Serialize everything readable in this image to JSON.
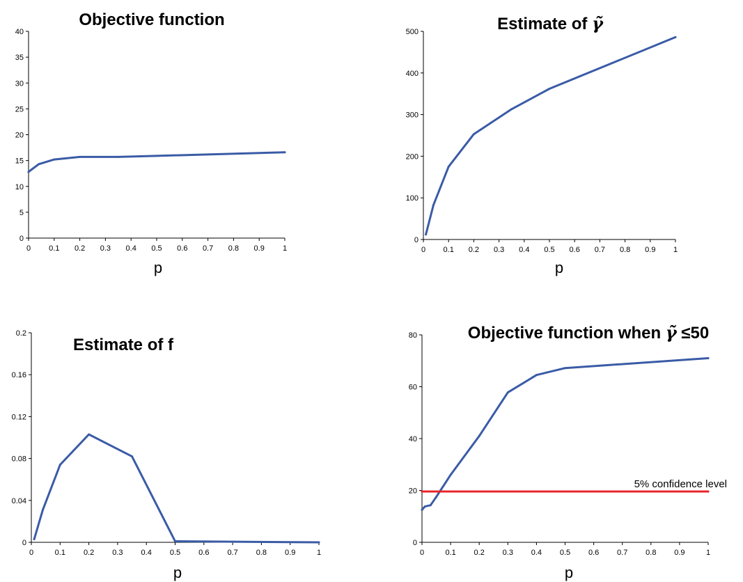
{
  "chart_data": [
    {
      "type": "line",
      "title": "Objective function",
      "xlabel": "p",
      "ylabel": "",
      "xlim": [
        0,
        1
      ],
      "ylim": [
        0,
        40
      ],
      "xticks": [
        "0",
        "0.1",
        "0.2",
        "0.3",
        "0.4",
        "0.5",
        "0.6",
        "0.7",
        "0.8",
        "0.9",
        "1"
      ],
      "yticks": [
        "0",
        "5",
        "10",
        "15",
        "20",
        "25",
        "30",
        "35",
        "40"
      ],
      "grid": false,
      "series": [
        {
          "color": "#3a5ba6",
          "x": [
            0.0,
            0.01,
            0.04,
            0.1,
            0.2,
            0.35,
            0.5,
            1.0
          ],
          "y": [
            12.8,
            13.2,
            14.3,
            15.2,
            15.7,
            15.7,
            15.9,
            16.6
          ]
        }
      ]
    },
    {
      "type": "line",
      "title": "Estimate of ",
      "title_symbol": "γ̃",
      "xlabel": "p",
      "ylabel": "",
      "xlim": [
        0,
        1
      ],
      "ylim": [
        0,
        500
      ],
      "xticks": [
        "0",
        "0.1",
        "0.2",
        "0.3",
        "0.4",
        "0.5",
        "0.6",
        "0.7",
        "0.8",
        "0.9",
        "1"
      ],
      "yticks": [
        "0",
        "100",
        "200",
        "300",
        "400",
        "500"
      ],
      "grid": false,
      "series": [
        {
          "color": "#3a5ba6",
          "x": [
            0.01,
            0.04,
            0.1,
            0.2,
            0.35,
            0.5,
            1.0
          ],
          "y": [
            12,
            83,
            175,
            253,
            313,
            362,
            486
          ]
        }
      ]
    },
    {
      "type": "line",
      "title": "Estimate of f",
      "xlabel": "p",
      "ylabel": "",
      "xlim": [
        0,
        1
      ],
      "ylim": [
        0,
        0.2
      ],
      "xticks": [
        "0",
        "0.1",
        "0.2",
        "0.3",
        "0.4",
        "0.5",
        "0.6",
        "0.7",
        "0.8",
        "0.9",
        "1"
      ],
      "yticks": [
        "0",
        "0.04",
        "0.08",
        "0.12",
        "0.16",
        "0.2"
      ],
      "grid": false,
      "series": [
        {
          "color": "#3a5ba6",
          "x": [
            0.01,
            0.04,
            0.1,
            0.2,
            0.35,
            0.5,
            1.0
          ],
          "y": [
            0.003,
            0.031,
            0.074,
            0.103,
            0.082,
            0.001,
            0.0
          ]
        }
      ]
    },
    {
      "type": "line",
      "title": "Objective function when ",
      "title_symbol": "γ̃",
      "title_suffix": " ≤50",
      "xlabel": "p",
      "ylabel": "",
      "xlim": [
        0,
        1
      ],
      "ylim": [
        0,
        80
      ],
      "xticks": [
        "0",
        "0.1",
        "0.2",
        "0.3",
        "0.4",
        "0.5",
        "0.6",
        "0.7",
        "0.8",
        "0.9",
        "1"
      ],
      "yticks": [
        "0",
        "20",
        "40",
        "60",
        "80"
      ],
      "grid": false,
      "series": [
        {
          "color": "#3a5ba6",
          "x": [
            0.0,
            0.01,
            0.03,
            0.05,
            0.1,
            0.2,
            0.3,
            0.4,
            0.5,
            1.0
          ],
          "y": [
            12.5,
            13.8,
            14.3,
            17.5,
            26.0,
            41.0,
            57.8,
            64.5,
            67.2,
            71.0
          ]
        },
        {
          "color": "#e8242a",
          "x": [
            0.0,
            1.0
          ],
          "y": [
            19.6,
            19.6
          ]
        }
      ],
      "annotation": "5% confidence level"
    }
  ]
}
